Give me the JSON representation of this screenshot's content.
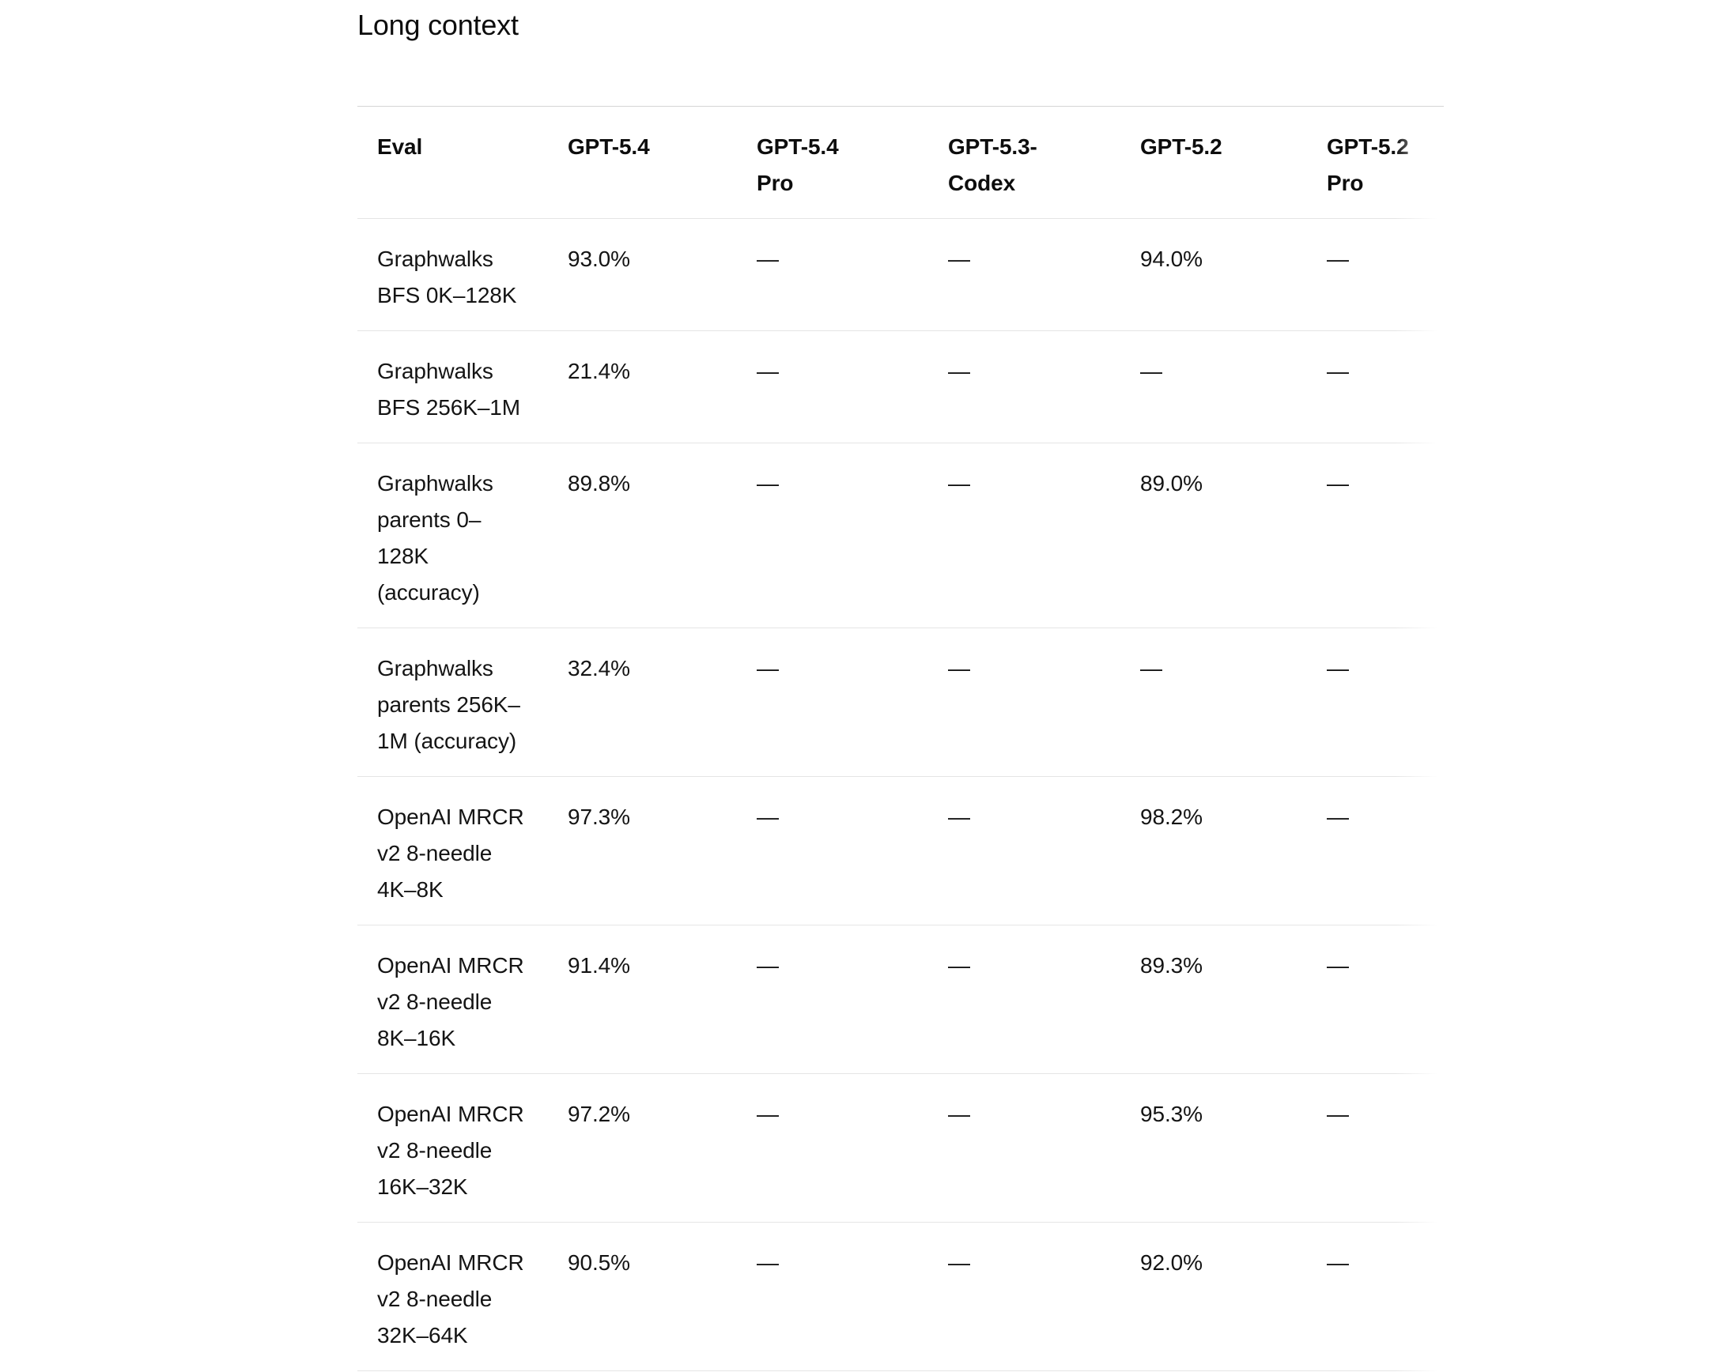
{
  "section": {
    "title": "Long context"
  },
  "table": {
    "columns": [
      {
        "id": "eval",
        "label": "Eval",
        "lines": [
          "Eval"
        ]
      },
      {
        "id": "gpt-5-4",
        "label": "GPT-5.4",
        "lines": [
          "GPT-5.4"
        ]
      },
      {
        "id": "gpt-5-4-pro",
        "label": "GPT-5.4 Pro",
        "lines": [
          "GPT-5.4",
          "Pro"
        ]
      },
      {
        "id": "gpt-5-3-codex",
        "label": "GPT-5.3-Codex",
        "lines": [
          "GPT-5.3-",
          "Codex"
        ]
      },
      {
        "id": "gpt-5-2",
        "label": "GPT-5.2",
        "lines": [
          "GPT-5.2"
        ]
      },
      {
        "id": "gpt-5-2-pro",
        "label": "GPT-5.2 Pro",
        "lines": [
          "GPT-5.2",
          "Pro"
        ]
      }
    ],
    "empty_marker": "—",
    "rows": [
      {
        "eval": {
          "label": "Graphwalks BFS 0K–128K",
          "lines": [
            "Graphwalks",
            "BFS 0K–128K"
          ]
        },
        "values": [
          "93.0%",
          "—",
          "—",
          "94.0%",
          "—"
        ]
      },
      {
        "eval": {
          "label": "Graphwalks BFS 256K–1M",
          "lines": [
            "Graphwalks",
            "BFS 256K–1M"
          ]
        },
        "values": [
          "21.4%",
          "—",
          "—",
          "—",
          "—"
        ]
      },
      {
        "eval": {
          "label": "Graphwalks parents 0–128K (accuracy)",
          "lines": [
            "Graphwalks",
            "parents 0–",
            "128K",
            "(accuracy)"
          ]
        },
        "values": [
          "89.8%",
          "—",
          "—",
          "89.0%",
          "—"
        ]
      },
      {
        "eval": {
          "label": "Graphwalks parents 256K–1M (accuracy)",
          "lines": [
            "Graphwalks",
            "parents 256K–",
            "1M (accuracy)"
          ]
        },
        "values": [
          "32.4%",
          "—",
          "—",
          "—",
          "—"
        ]
      },
      {
        "eval": {
          "label": "OpenAI MRCR v2 8-needle 4K–8K",
          "lines": [
            "OpenAI MRCR",
            "v2 8-needle",
            "4K–8K"
          ]
        },
        "values": [
          "97.3%",
          "—",
          "—",
          "98.2%",
          "—"
        ]
      },
      {
        "eval": {
          "label": "OpenAI MRCR v2 8-needle 8K–16K",
          "lines": [
            "OpenAI MRCR",
            "v2 8-needle",
            "8K–16K"
          ]
        },
        "values": [
          "91.4%",
          "—",
          "—",
          "89.3%",
          "—"
        ]
      },
      {
        "eval": {
          "label": "OpenAI MRCR v2 8-needle 16K–32K",
          "lines": [
            "OpenAI MRCR",
            "v2 8-needle",
            "16K–32K"
          ]
        },
        "values": [
          "97.2%",
          "—",
          "—",
          "95.3%",
          "—"
        ]
      },
      {
        "eval": {
          "label": "OpenAI MRCR v2 8-needle 32K–64K",
          "lines": [
            "OpenAI MRCR",
            "v2 8-needle",
            "32K–64K"
          ]
        },
        "values": [
          "90.5%",
          "—",
          "—",
          "92.0%",
          "—"
        ]
      }
    ]
  },
  "colors": {
    "background": "#ffffff",
    "text": "#141414",
    "heading_text": "#0d0d0d",
    "table_top_border": "#d6d6d6",
    "row_divider": "#e5e5e5"
  }
}
